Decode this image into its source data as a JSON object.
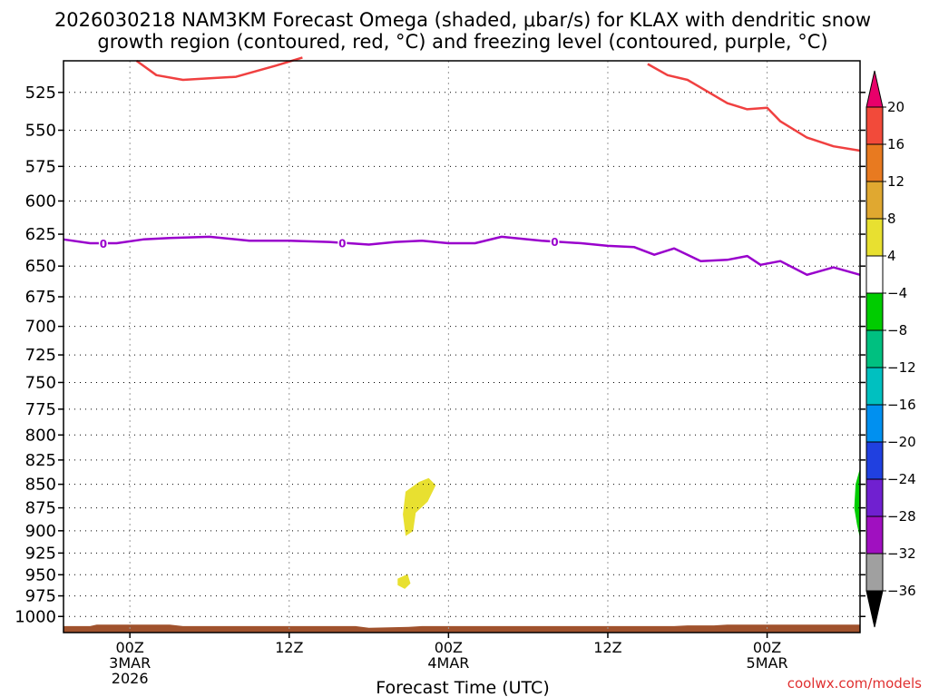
{
  "chart_data": {
    "type": "time-height",
    "title_line1": "2026030218 NAM3KM Forecast Omega (shaded, μbar/s) for KLAX with dendritic snow",
    "title_line2": "growth region (contoured, red, °C) and freezing level (contoured, purple, °C)",
    "xlabel": "Forecast Time (UTC)",
    "credit": "coolwx.com/models",
    "x_range_hours": [
      -5,
      55
    ],
    "x_ticks": [
      {
        "hour": 0,
        "lines": [
          "00Z",
          "3MAR",
          "2026"
        ]
      },
      {
        "hour": 12,
        "lines": [
          "12Z"
        ]
      },
      {
        "hour": 24,
        "lines": [
          "00Z",
          "4MAR"
        ]
      },
      {
        "hour": 36,
        "lines": [
          "12Z"
        ]
      },
      {
        "hour": 48,
        "lines": [
          "00Z",
          "5MAR"
        ]
      }
    ],
    "y_ticks_hpa": [
      "525",
      "550",
      "575",
      "600",
      "625",
      "650",
      "675",
      "700",
      "725",
      "750",
      "775",
      "800",
      "825",
      "850",
      "875",
      "900",
      "925",
      "950",
      "975",
      "1000"
    ],
    "y_range_hpa": [
      505,
      1020
    ],
    "colorbar": {
      "labels": [
        "20",
        "16",
        "12",
        "8",
        "4",
        "−4",
        "−8",
        "−12",
        "−16",
        "−20",
        "−24",
        "−28",
        "−32",
        "−36"
      ],
      "colors": [
        "#e8006a",
        "#f24a3a",
        "#e87a20",
        "#e0a830",
        "#e8e030",
        "#ffffff",
        "#00cc00",
        "#00c080",
        "#00c0c0",
        "#0090f0",
        "#2040e0",
        "#7020d0",
        "#a010c0",
        "#a0a0a0",
        "#000000"
      ]
    },
    "freezing_level": {
      "label": "0",
      "color": "#9900cc",
      "label_hours": [
        -2,
        16,
        32
      ],
      "points": [
        [
          -5,
          629
        ],
        [
          -3,
          632
        ],
        [
          -1,
          632
        ],
        [
          1,
          629
        ],
        [
          3,
          628
        ],
        [
          6,
          627
        ],
        [
          9,
          630
        ],
        [
          12,
          630
        ],
        [
          15,
          631
        ],
        [
          18,
          633
        ],
        [
          20,
          631
        ],
        [
          22,
          630
        ],
        [
          24,
          632
        ],
        [
          26,
          632
        ],
        [
          28,
          627
        ],
        [
          31,
          630
        ],
        [
          34,
          632
        ],
        [
          36,
          634
        ],
        [
          38,
          635
        ],
        [
          39.5,
          641
        ],
        [
          41,
          636
        ],
        [
          43,
          646
        ],
        [
          45,
          645
        ],
        [
          46.5,
          642
        ],
        [
          47.5,
          649
        ],
        [
          49,
          646
        ],
        [
          51,
          657
        ],
        [
          53,
          651
        ],
        [
          55,
          657
        ]
      ]
    },
    "dendritic_growth_contour": {
      "color": "#f04040",
      "segments": [
        [
          [
            0.5,
            505
          ],
          [
            2,
            514
          ],
          [
            4,
            517
          ],
          [
            6,
            516
          ],
          [
            8,
            515
          ],
          [
            11,
            508
          ],
          [
            13,
            503
          ]
        ],
        [
          [
            39,
            507
          ],
          [
            40.5,
            514
          ],
          [
            42,
            517
          ],
          [
            45,
            532
          ],
          [
            46.5,
            536
          ],
          [
            48,
            535
          ],
          [
            49,
            544
          ],
          [
            51,
            555
          ],
          [
            53,
            561
          ],
          [
            55,
            564
          ]
        ]
      ]
    },
    "omega_regions": [
      {
        "value": "4 to 8",
        "color": "#e8e030",
        "points": [
          [
            21.8,
            848
          ],
          [
            22.5,
            844
          ],
          [
            23,
            851
          ],
          [
            22.4,
            868
          ],
          [
            21.5,
            880
          ],
          [
            21.3,
            900
          ],
          [
            20.8,
            905
          ],
          [
            20.6,
            882
          ],
          [
            20.8,
            858
          ]
        ]
      },
      {
        "value": "4 to 8",
        "color": "#e8e030",
        "points": [
          [
            20.2,
            955
          ],
          [
            20.9,
            950
          ],
          [
            21.1,
            960
          ],
          [
            20.7,
            966
          ],
          [
            20.2,
            962
          ]
        ]
      },
      {
        "value": "-4 to -8",
        "color": "#00cc00",
        "points": [
          [
            55,
            835
          ],
          [
            54.7,
            850
          ],
          [
            54.6,
            875
          ],
          [
            54.8,
            893
          ],
          [
            55,
            906
          ]
        ]
      }
    ],
    "ground": {
      "color": "#a0522d",
      "points": [
        [
          -5,
          1012
        ],
        [
          -3,
          1012
        ],
        [
          -2.5,
          1010
        ],
        [
          3,
          1010
        ],
        [
          4,
          1012
        ],
        [
          17,
          1012
        ],
        [
          18,
          1014
        ],
        [
          21,
          1013
        ],
        [
          22,
          1012
        ],
        [
          41,
          1012
        ],
        [
          42,
          1011
        ],
        [
          44,
          1011
        ],
        [
          45,
          1010
        ],
        [
          55,
          1010
        ]
      ]
    }
  }
}
